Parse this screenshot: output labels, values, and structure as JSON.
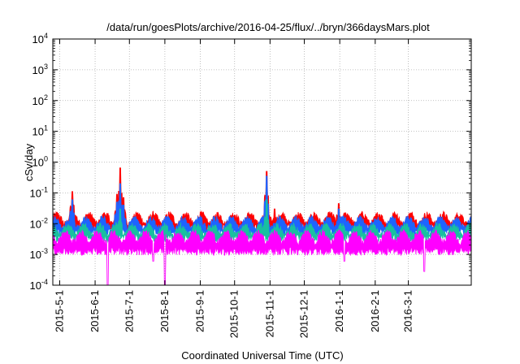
{
  "chart_data": {
    "type": "area",
    "title": "/data/run/goesPlots/archive/2016-04-25/flux/../bryn/366daysMars.plot",
    "xlabel": "Coordinated Universal Time (UTC)",
    "ylabel": "cSv/day",
    "x_range": [
      "2015-04-25",
      "2016-04-25"
    ],
    "y_scale": "log",
    "ylim": [
      0.0001,
      10000
    ],
    "y_ticks": [
      {
        "value": 0.0001,
        "base": "10",
        "exp": "-4"
      },
      {
        "value": 0.001,
        "base": "10",
        "exp": "-3"
      },
      {
        "value": 0.01,
        "base": "10",
        "exp": "-2"
      },
      {
        "value": 0.1,
        "base": "10",
        "exp": "-1"
      },
      {
        "value": 1,
        "base": "10",
        "exp": "0"
      },
      {
        "value": 10,
        "base": "10",
        "exp": "1"
      },
      {
        "value": 100,
        "base": "10",
        "exp": "2"
      },
      {
        "value": 1000,
        "base": "10",
        "exp": "3"
      },
      {
        "value": 10000,
        "base": "10",
        "exp": "4"
      }
    ],
    "x_ticks": [
      "2015-5-1",
      "2015-6-1",
      "2015-7-1",
      "2015-8-1",
      "2015-9-1",
      "2015-10-1",
      "2015-11-1",
      "2015-12-1",
      "2016-1-1",
      "2016-2-1",
      "2016-3-1"
    ],
    "grid": true,
    "legend": "none",
    "series": [
      {
        "color": "#ff0000",
        "baseline": 0.015,
        "spikes": [
          [
            "2015-05-12",
            0.11
          ],
          [
            "2015-06-20",
            0.09
          ],
          [
            "2015-06-23",
            0.65
          ],
          [
            "2015-06-26",
            0.07
          ],
          [
            "2015-10-29",
            0.5
          ],
          [
            "2015-11-05",
            0.03
          ],
          [
            "2015-12-31",
            0.045
          ]
        ]
      },
      {
        "color": "#1e64ff",
        "baseline": 0.011,
        "spikes": [
          [
            "2015-05-12",
            0.06
          ],
          [
            "2015-06-20",
            0.05
          ],
          [
            "2015-06-23",
            0.2
          ],
          [
            "2015-06-26",
            0.04
          ],
          [
            "2015-10-29",
            0.35
          ],
          [
            "2015-12-31",
            0.03
          ]
        ]
      },
      {
        "color": "#19c0a0",
        "baseline": 0.0065,
        "spikes": [
          [
            "2015-06-23",
            0.03
          ],
          [
            "2015-10-29",
            0.06
          ]
        ]
      },
      {
        "color": "#ff00ff",
        "baseline": 0.0038,
        "dips": [
          [
            "2015-06-12",
            0.0001
          ],
          [
            "2015-08-01",
            0.0001
          ],
          [
            "2016-03-15",
            0.00028
          ],
          [
            "2015-07-22",
            0.0006
          ],
          [
            "2016-01-05",
            0.0006
          ]
        ]
      }
    ]
  }
}
